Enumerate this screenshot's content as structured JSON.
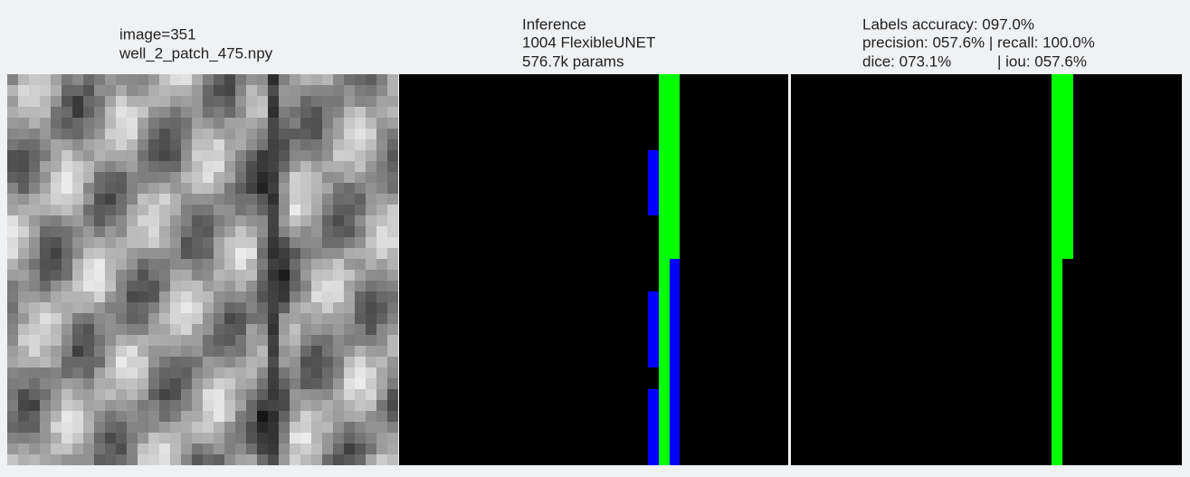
{
  "panels": [
    {
      "lines": [
        "image=351",
        "well_2_patch_475.npy"
      ]
    },
    {
      "lines": [
        "Inference",
        "1004 FlexibleUNET",
        "576.7k params"
      ]
    },
    {
      "lines": [
        "Labels accuracy: 097.0%",
        "precision: 057.6% | recall: 100.0%",
        "dice: 073.1%",
        "| iou: 057.6%"
      ]
    }
  ]
}
